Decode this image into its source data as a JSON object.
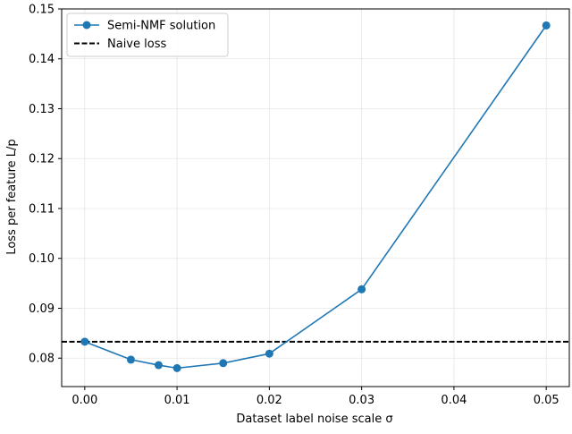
{
  "chart_data": {
    "type": "line",
    "title": "",
    "xlabel": "Dataset label noise scale σ",
    "ylabel": "Loss per feature L/p",
    "xlim": [
      -0.0025,
      0.0525
    ],
    "ylim": [
      0.0743,
      0.15
    ],
    "xticks": [
      "0.00",
      "0.01",
      "0.02",
      "0.03",
      "0.04",
      "0.05"
    ],
    "yticks": [
      "0.08",
      "0.09",
      "0.10",
      "0.11",
      "0.12",
      "0.13",
      "0.14",
      "0.15"
    ],
    "grid": true,
    "legend_position": "top-left",
    "series": [
      {
        "name": "Semi-NMF solution",
        "style": "solid-line-with-circle-markers",
        "color": "#1f77b4",
        "x": [
          0.0,
          0.005,
          0.008,
          0.01,
          0.015,
          0.02,
          0.03,
          0.05
        ],
        "y": [
          0.0833,
          0.0797,
          0.0786,
          0.078,
          0.079,
          0.0809,
          0.0938,
          0.1467
        ]
      },
      {
        "name": "Naive loss",
        "style": "dashed-horizontal-line",
        "color": "#000000",
        "y": 0.0833
      }
    ]
  }
}
